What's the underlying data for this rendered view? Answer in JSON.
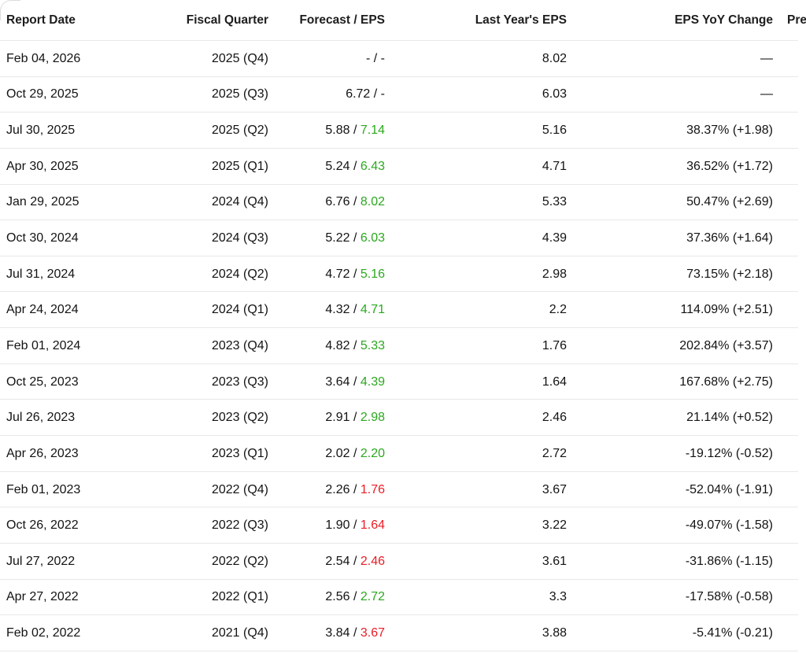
{
  "table": {
    "columns": [
      {
        "label": "Report Date"
      },
      {
        "label": "Fiscal Quarter"
      },
      {
        "label": "Forecast / EPS"
      },
      {
        "label": "Last Year's EPS"
      },
      {
        "label": "EPS YoY Change"
      },
      {
        "label": "Pre"
      }
    ],
    "separator": " / ",
    "colors": {
      "beat_green": "#2ca81f",
      "miss_red": "#ec1c24",
      "text": "#131313",
      "divider": "#e8e8e8"
    },
    "rows": [
      {
        "report_date": "Feb 04, 2026",
        "fiscal_quarter": "2025 (Q4)",
        "forecast": "-",
        "eps": "-",
        "eps_color": "neutral",
        "last_year_eps": "8.02",
        "yoy_change": "—"
      },
      {
        "report_date": "Oct 29, 2025",
        "fiscal_quarter": "2025 (Q3)",
        "forecast": "6.72",
        "eps": "-",
        "eps_color": "neutral",
        "last_year_eps": "6.03",
        "yoy_change": "—"
      },
      {
        "report_date": "Jul 30, 2025",
        "fiscal_quarter": "2025 (Q2)",
        "forecast": "5.88",
        "eps": "7.14",
        "eps_color": "green",
        "last_year_eps": "5.16",
        "yoy_change": "38.37% (+1.98)"
      },
      {
        "report_date": "Apr 30, 2025",
        "fiscal_quarter": "2025 (Q1)",
        "forecast": "5.24",
        "eps": "6.43",
        "eps_color": "green",
        "last_year_eps": "4.71",
        "yoy_change": "36.52% (+1.72)"
      },
      {
        "report_date": "Jan 29, 2025",
        "fiscal_quarter": "2024 (Q4)",
        "forecast": "6.76",
        "eps": "8.02",
        "eps_color": "green",
        "last_year_eps": "5.33",
        "yoy_change": "50.47% (+2.69)"
      },
      {
        "report_date": "Oct 30, 2024",
        "fiscal_quarter": "2024 (Q3)",
        "forecast": "5.22",
        "eps": "6.03",
        "eps_color": "green",
        "last_year_eps": "4.39",
        "yoy_change": "37.36% (+1.64)"
      },
      {
        "report_date": "Jul 31, 2024",
        "fiscal_quarter": "2024 (Q2)",
        "forecast": "4.72",
        "eps": "5.16",
        "eps_color": "green",
        "last_year_eps": "2.98",
        "yoy_change": "73.15% (+2.18)"
      },
      {
        "report_date": "Apr 24, 2024",
        "fiscal_quarter": "2024 (Q1)",
        "forecast": "4.32",
        "eps": "4.71",
        "eps_color": "green",
        "last_year_eps": "2.2",
        "yoy_change": "114.09% (+2.51)"
      },
      {
        "report_date": "Feb 01, 2024",
        "fiscal_quarter": "2023 (Q4)",
        "forecast": "4.82",
        "eps": "5.33",
        "eps_color": "green",
        "last_year_eps": "1.76",
        "yoy_change": "202.84% (+3.57)"
      },
      {
        "report_date": "Oct 25, 2023",
        "fiscal_quarter": "2023 (Q3)",
        "forecast": "3.64",
        "eps": "4.39",
        "eps_color": "green",
        "last_year_eps": "1.64",
        "yoy_change": "167.68% (+2.75)"
      },
      {
        "report_date": "Jul 26, 2023",
        "fiscal_quarter": "2023 (Q2)",
        "forecast": "2.91",
        "eps": "2.98",
        "eps_color": "green",
        "last_year_eps": "2.46",
        "yoy_change": "21.14% (+0.52)"
      },
      {
        "report_date": "Apr 26, 2023",
        "fiscal_quarter": "2023 (Q1)",
        "forecast": "2.02",
        "eps": "2.20",
        "eps_color": "green",
        "last_year_eps": "2.72",
        "yoy_change": "-19.12% (-0.52)"
      },
      {
        "report_date": "Feb 01, 2023",
        "fiscal_quarter": "2022 (Q4)",
        "forecast": "2.26",
        "eps": "1.76",
        "eps_color": "red",
        "last_year_eps": "3.67",
        "yoy_change": "-52.04% (-1.91)"
      },
      {
        "report_date": "Oct 26, 2022",
        "fiscal_quarter": "2022 (Q3)",
        "forecast": "1.90",
        "eps": "1.64",
        "eps_color": "red",
        "last_year_eps": "3.22",
        "yoy_change": "-49.07% (-1.58)"
      },
      {
        "report_date": "Jul 27, 2022",
        "fiscal_quarter": "2022 (Q2)",
        "forecast": "2.54",
        "eps": "2.46",
        "eps_color": "red",
        "last_year_eps": "3.61",
        "yoy_change": "-31.86% (-1.15)"
      },
      {
        "report_date": "Apr 27, 2022",
        "fiscal_quarter": "2022 (Q1)",
        "forecast": "2.56",
        "eps": "2.72",
        "eps_color": "green",
        "last_year_eps": "3.3",
        "yoy_change": "-17.58% (-0.58)"
      },
      {
        "report_date": "Feb 02, 2022",
        "fiscal_quarter": "2021 (Q4)",
        "forecast": "3.84",
        "eps": "3.67",
        "eps_color": "red",
        "last_year_eps": "3.88",
        "yoy_change": "-5.41% (-0.21)"
      }
    ]
  }
}
